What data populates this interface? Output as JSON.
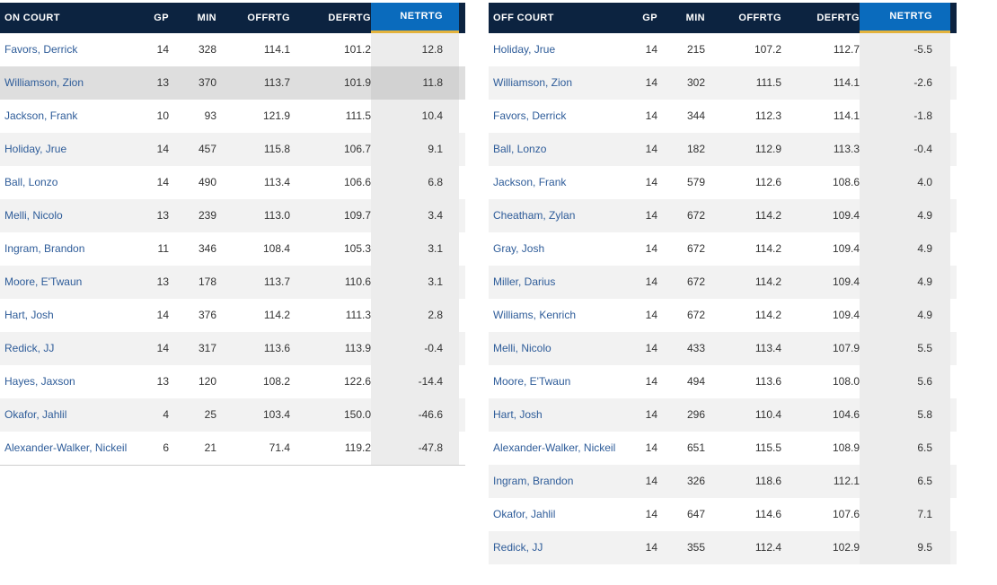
{
  "on_court": {
    "headers": [
      "ON COURT",
      "GP",
      "MIN",
      "OFFRTG",
      "DEFRTG",
      "NETRTG"
    ],
    "rows": [
      [
        "Favors, Derrick",
        "14",
        "328",
        "114.1",
        "101.2",
        "12.8"
      ],
      [
        "Williamson, Zion",
        "13",
        "370",
        "113.7",
        "101.9",
        "11.8"
      ],
      [
        "Jackson, Frank",
        "10",
        "93",
        "121.9",
        "111.5",
        "10.4"
      ],
      [
        "Holiday, Jrue",
        "14",
        "457",
        "115.8",
        "106.7",
        "9.1"
      ],
      [
        "Ball, Lonzo",
        "14",
        "490",
        "113.4",
        "106.6",
        "6.8"
      ],
      [
        "Melli, Nicolo",
        "13",
        "239",
        "113.0",
        "109.7",
        "3.4"
      ],
      [
        "Ingram, Brandon",
        "11",
        "346",
        "108.4",
        "105.3",
        "3.1"
      ],
      [
        "Moore, E'Twaun",
        "13",
        "178",
        "113.7",
        "110.6",
        "3.1"
      ],
      [
        "Hart, Josh",
        "14",
        "376",
        "114.2",
        "111.3",
        "2.8"
      ],
      [
        "Redick, JJ",
        "14",
        "317",
        "113.6",
        "113.9",
        "-0.4"
      ],
      [
        "Hayes, Jaxson",
        "13",
        "120",
        "108.2",
        "122.6",
        "-14.4"
      ],
      [
        "Okafor, Jahlil",
        "4",
        "25",
        "103.4",
        "150.0",
        "-46.6"
      ],
      [
        "Alexander-Walker, Nickeil",
        "6",
        "21",
        "71.4",
        "119.2",
        "-47.8"
      ]
    ]
  },
  "off_court": {
    "headers": [
      "OFF COURT",
      "GP",
      "MIN",
      "OFFRTG",
      "DEFRTG",
      "NETRTG"
    ],
    "rows": [
      [
        "Holiday, Jrue",
        "14",
        "215",
        "107.2",
        "112.7",
        "-5.5"
      ],
      [
        "Williamson, Zion",
        "14",
        "302",
        "111.5",
        "114.1",
        "-2.6"
      ],
      [
        "Favors, Derrick",
        "14",
        "344",
        "112.3",
        "114.1",
        "-1.8"
      ],
      [
        "Ball, Lonzo",
        "14",
        "182",
        "112.9",
        "113.3",
        "-0.4"
      ],
      [
        "Jackson, Frank",
        "14",
        "579",
        "112.6",
        "108.6",
        "4.0"
      ],
      [
        "Cheatham, Zylan",
        "14",
        "672",
        "114.2",
        "109.4",
        "4.9"
      ],
      [
        "Gray, Josh",
        "14",
        "672",
        "114.2",
        "109.4",
        "4.9"
      ],
      [
        "Miller, Darius",
        "14",
        "672",
        "114.2",
        "109.4",
        "4.9"
      ],
      [
        "Williams, Kenrich",
        "14",
        "672",
        "114.2",
        "109.4",
        "4.9"
      ],
      [
        "Melli, Nicolo",
        "14",
        "433",
        "113.4",
        "107.9",
        "5.5"
      ],
      [
        "Moore, E'Twaun",
        "14",
        "494",
        "113.6",
        "108.0",
        "5.6"
      ],
      [
        "Hart, Josh",
        "14",
        "296",
        "110.4",
        "104.6",
        "5.8"
      ],
      [
        "Alexander-Walker, Nickeil",
        "14",
        "651",
        "115.5",
        "108.9",
        "6.5"
      ],
      [
        "Ingram, Brandon",
        "14",
        "326",
        "118.6",
        "112.1",
        "6.5"
      ],
      [
        "Okafor, Jahlil",
        "14",
        "647",
        "114.6",
        "107.6",
        "7.1"
      ],
      [
        "Redick, JJ",
        "14",
        "355",
        "112.4",
        "102.9",
        "9.5"
      ]
    ]
  },
  "colors": {
    "header_bg": "#0c2340",
    "sorted_header_bg": "#0a6bbd",
    "sorted_header_underline": "#e3b23c",
    "player_link": "#2e5c99"
  }
}
